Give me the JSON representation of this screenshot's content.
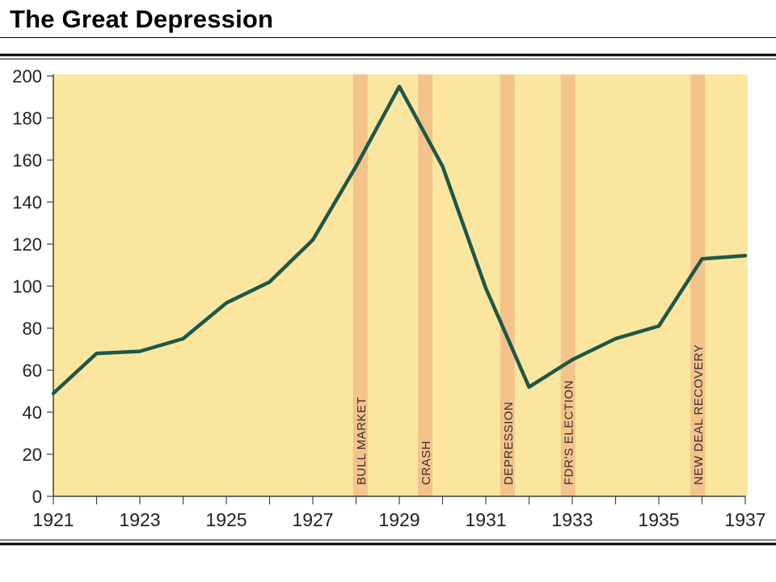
{
  "page_title": "The Great Depression",
  "chart_data": {
    "type": "line",
    "title": "The Great Depression",
    "xlabel": "",
    "ylabel": "",
    "xlim": [
      1921,
      1937
    ],
    "ylim": [
      0,
      200
    ],
    "x_ticks": [
      1921,
      1923,
      1925,
      1927,
      1929,
      1931,
      1933,
      1935,
      1937
    ],
    "y_ticks": [
      0,
      20,
      40,
      60,
      80,
      100,
      120,
      140,
      160,
      180,
      200
    ],
    "grid": false,
    "series": [
      {
        "points": [
          [
            1921,
            49
          ],
          [
            1922,
            68
          ],
          [
            1923,
            69
          ],
          [
            1924,
            75
          ],
          [
            1925,
            92
          ],
          [
            1926,
            102
          ],
          [
            1927,
            122
          ],
          [
            1928,
            157
          ],
          [
            1929,
            195
          ],
          [
            1930,
            157
          ],
          [
            1931,
            99
          ],
          [
            1932,
            52
          ],
          [
            1933,
            65
          ],
          [
            1934,
            75
          ],
          [
            1935,
            81
          ],
          [
            1936,
            113
          ],
          [
            1937,
            114.5
          ]
        ]
      }
    ],
    "annotations": [
      {
        "label": "BULL MARKET",
        "x": 1928.1
      },
      {
        "label": "CRASH",
        "x": 1929.6
      },
      {
        "label": "DEPRESSION",
        "x": 1931.5
      },
      {
        "label": "FDR'S ELECTION",
        "x": 1932.9
      },
      {
        "label": "NEW DEAL RECOVERY",
        "x": 1935.9
      }
    ],
    "colors": {
      "background": "#fbe6a0",
      "band": "#f4c38a",
      "line": "#1f5747"
    }
  }
}
